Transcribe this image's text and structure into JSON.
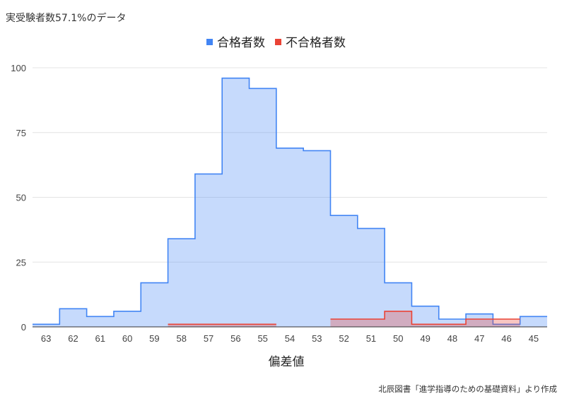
{
  "chart_data": {
    "type": "area",
    "title": "実受験者数57.1%のデータ",
    "xlabel": "偏差値",
    "ylabel": "",
    "ylim": [
      0,
      100
    ],
    "yticks": [
      0,
      25,
      50,
      75,
      100
    ],
    "grid": true,
    "legend_position": "top-center",
    "categories": [
      "63",
      "62",
      "61",
      "60",
      "59",
      "58",
      "57",
      "56",
      "55",
      "54",
      "53",
      "52",
      "51",
      "50",
      "49",
      "48",
      "47",
      "46",
      "45"
    ],
    "series": [
      {
        "name": "合格者数",
        "color": "#4285f4",
        "values": [
          1,
          7,
          4,
          6,
          17,
          34,
          59,
          96,
          92,
          69,
          68,
          43,
          38,
          17,
          8,
          3,
          5,
          1,
          4
        ]
      },
      {
        "name": "不合格者数",
        "color": "#ea4335",
        "values": [
          0,
          0,
          0,
          0,
          0,
          1,
          1,
          1,
          1,
          0,
          0,
          3,
          3,
          6,
          1,
          1,
          3,
          3,
          0
        ]
      }
    ],
    "source_note": "北辰図書「進学指導のための基礎資料」より作成"
  }
}
